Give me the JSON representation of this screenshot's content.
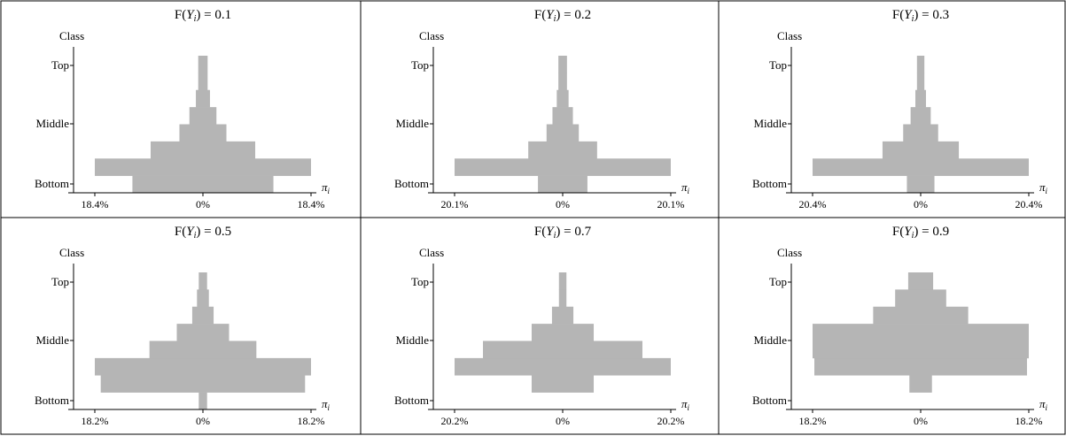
{
  "chart_data": [
    {
      "type": "bar",
      "title": "F(Yi) = 0.1",
      "title_prefix": "F(",
      "title_var": "Y",
      "title_sub": "i",
      "title_suffix": ") = 0.1",
      "ylabel": "Class",
      "xlabel": "π",
      "xlabel_sub": "i",
      "y_ticks": [
        "Top",
        "Middle",
        "Bottom"
      ],
      "x_ticks": [
        "18.4%",
        "0%",
        "18.4%"
      ],
      "xlim": [
        -18.4,
        18.4
      ],
      "bar_color": "#b5b5b5",
      "values": [
        12.0,
        18.4,
        8.9,
        4.0,
        2.3,
        1.2,
        0.8,
        0.8
      ]
    },
    {
      "type": "bar",
      "title": "F(Yi) = 0.2",
      "title_prefix": "F(",
      "title_var": "Y",
      "title_sub": "i",
      "title_suffix": ") = 0.2",
      "ylabel": "Class",
      "xlabel": "π",
      "xlabel_sub": "i",
      "y_ticks": [
        "Top",
        "Middle",
        "Bottom"
      ],
      "x_ticks": [
        "20.1%",
        "0%",
        "20.1%"
      ],
      "xlim": [
        -20.1,
        20.1
      ],
      "bar_color": "#b5b5b5",
      "values": [
        4.6,
        20.1,
        6.4,
        3.0,
        1.9,
        1.1,
        0.8,
        0.8
      ]
    },
    {
      "type": "bar",
      "title": "F(Yi) = 0.3",
      "title_prefix": "F(",
      "title_var": "Y",
      "title_sub": "i",
      "title_suffix": ") = 0.3",
      "ylabel": "Class",
      "xlabel": "π",
      "xlabel_sub": "i",
      "y_ticks": [
        "Top",
        "Middle",
        "Bottom"
      ],
      "x_ticks": [
        "20.4%",
        "0%",
        "20.4%"
      ],
      "xlim": [
        -20.4,
        20.4
      ],
      "bar_color": "#b5b5b5",
      "values": [
        2.6,
        20.4,
        7.2,
        3.3,
        1.9,
        1.0,
        0.7,
        0.7
      ]
    },
    {
      "type": "bar",
      "title": "F(Yi) = 0.5",
      "title_prefix": "F(",
      "title_var": "Y",
      "title_sub": "i",
      "title_suffix": ") = 0.5",
      "ylabel": "Class",
      "xlabel": "π",
      "xlabel_sub": "i",
      "y_ticks": [
        "Top",
        "Middle",
        "Bottom"
      ],
      "x_ticks": [
        "18.2%",
        "0%",
        "18.2%"
      ],
      "xlim": [
        -18.2,
        18.2
      ],
      "bar_color": "#b5b5b5",
      "values": [
        0.7,
        17.2,
        18.2,
        9.0,
        4.4,
        1.8,
        1.0,
        0.7
      ]
    },
    {
      "type": "bar",
      "title": "F(Yi) = 0.7",
      "title_prefix": "F(",
      "title_var": "Y",
      "title_sub": "i",
      "title_suffix": ") = 0.7",
      "ylabel": "Class",
      "xlabel": "π",
      "xlabel_sub": "i",
      "y_ticks": [
        "Top",
        "Middle",
        "Bottom"
      ],
      "x_ticks": [
        "20.2%",
        "0%",
        "20.2%"
      ],
      "xlim": [
        -20.2,
        20.2
      ],
      "bar_color": "#b5b5b5",
      "values": [
        0.0,
        5.8,
        20.2,
        14.9,
        5.8,
        2.0,
        0.7,
        0.7
      ]
    },
    {
      "type": "bar",
      "title": "F(Yi) = 0.9",
      "title_prefix": "F(",
      "title_var": "Y",
      "title_sub": "i",
      "title_suffix": ") = 0.9",
      "ylabel": "Class",
      "xlabel": "π",
      "xlabel_sub": "i",
      "y_ticks": [
        "Top",
        "Middle",
        "Bottom"
      ],
      "x_ticks": [
        "18.2%",
        "0%",
        "18.2%"
      ],
      "xlim": [
        -18.2,
        18.2
      ],
      "bar_color": "#b5b5b5",
      "values": [
        0.0,
        1.9,
        17.9,
        18.2,
        18.2,
        8.0,
        4.3,
        2.1
      ]
    }
  ]
}
